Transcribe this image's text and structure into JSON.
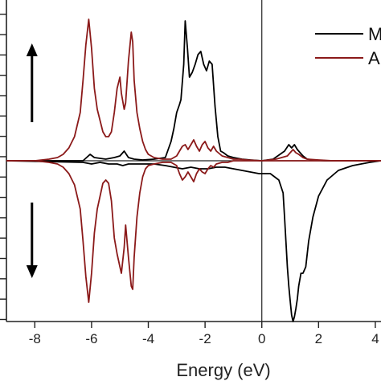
{
  "chart_data": {
    "type": "line",
    "title": "",
    "xlabel": "Energy (eV)",
    "ylabel": "",
    "xlim": [
      -9,
      4.2
    ],
    "ylim": [
      -1.0,
      1.0
    ],
    "x_ticks": [
      -8,
      -6,
      -4,
      -2,
      0,
      2,
      4
    ],
    "x_tick_labels": [
      "-8",
      "-6",
      "-4",
      "-2",
      "0",
      "2",
      "4"
    ],
    "y_tick_count": 16,
    "fermi_line_x": 0,
    "legend": {
      "placement": "top-right",
      "entries": [
        "M",
        "A"
      ]
    },
    "annotations": [
      {
        "type": "arrow",
        "direction": "up",
        "x": -8.1,
        "y_from": 0.24,
        "y_to": 0.73
      },
      {
        "type": "arrow",
        "direction": "down",
        "x": -8.1,
        "y_from": -0.26,
        "y_to": -0.73
      }
    ],
    "series": [
      {
        "name": "M",
        "color": "#000000",
        "spin": "up",
        "x": [
          -9,
          -6.3,
          -6.05,
          -5.9,
          -5.5,
          -5.2,
          -5.0,
          -4.85,
          -4.7,
          -4.5,
          -4.2,
          -3.8,
          -3.4,
          -3.2,
          -3.1,
          -3.0,
          -2.9,
          -2.85,
          -2.75,
          -2.7,
          -2.62,
          -2.55,
          -2.45,
          -2.35,
          -2.25,
          -2.15,
          -2.05,
          -1.95,
          -1.85,
          -1.75,
          -1.65,
          -1.55,
          -1.45,
          -1.35,
          -1.2,
          -1.0,
          -0.7,
          -0.4,
          0,
          0.4,
          0.8,
          0.95,
          1.05,
          1.15,
          1.25,
          1.35,
          1.45,
          1.6,
          1.8,
          2.2,
          3.0,
          4.2
        ],
        "y": [
          0.0,
          0.0,
          0.04,
          0.02,
          0.01,
          0.02,
          0.03,
          0.06,
          0.02,
          0.01,
          0.005,
          0.01,
          0.02,
          0.12,
          0.2,
          0.3,
          0.35,
          0.38,
          0.6,
          0.87,
          0.7,
          0.52,
          0.55,
          0.6,
          0.66,
          0.68,
          0.6,
          0.56,
          0.62,
          0.6,
          0.34,
          0.15,
          0.06,
          0.05,
          0.03,
          0.02,
          0.01,
          0.005,
          0.0,
          0.01,
          0.06,
          0.1,
          0.08,
          0.1,
          0.07,
          0.05,
          0.03,
          0.01,
          0.005,
          0.0,
          0.0,
          0.0
        ]
      },
      {
        "name": "M",
        "color": "#000000",
        "spin": "down",
        "x": [
          -9,
          -6.3,
          -6.0,
          -5.7,
          -5.4,
          -5.1,
          -4.9,
          -4.7,
          -4.5,
          -4.2,
          -3.8,
          -3.4,
          -3.1,
          -2.8,
          -2.5,
          -2.2,
          -1.9,
          -1.6,
          -1.3,
          -1.0,
          -0.7,
          -0.4,
          -0.1,
          0.3,
          0.6,
          0.75,
          0.8,
          0.85,
          0.9,
          0.95,
          1.0,
          1.05,
          1.1,
          1.15,
          1.2,
          1.25,
          1.3,
          1.38,
          1.45,
          1.55,
          1.65,
          1.8,
          2.0,
          2.3,
          2.7,
          3.2,
          3.8,
          4.2
        ],
        "y": [
          0.0,
          -0.01,
          -0.02,
          -0.01,
          -0.02,
          -0.02,
          -0.03,
          -0.02,
          -0.02,
          -0.02,
          -0.02,
          -0.03,
          -0.04,
          -0.05,
          -0.04,
          -0.05,
          -0.05,
          -0.04,
          -0.04,
          -0.05,
          -0.06,
          -0.07,
          -0.08,
          -0.08,
          -0.12,
          -0.2,
          -0.35,
          -0.5,
          -0.66,
          -0.78,
          -0.87,
          -0.96,
          -1.0,
          -0.97,
          -0.92,
          -0.86,
          -0.78,
          -0.7,
          -0.7,
          -0.66,
          -0.5,
          -0.35,
          -0.22,
          -0.12,
          -0.06,
          -0.03,
          -0.01,
          0.0
        ]
      },
      {
        "name": "A",
        "color": "#8b1a1a",
        "spin": "up",
        "x": [
          -9,
          -8.0,
          -7.5,
          -7.2,
          -7.0,
          -6.8,
          -6.6,
          -6.4,
          -6.3,
          -6.2,
          -6.1,
          -6.0,
          -5.9,
          -5.8,
          -5.7,
          -5.6,
          -5.5,
          -5.4,
          -5.3,
          -5.2,
          -5.1,
          -5.0,
          -4.95,
          -4.85,
          -4.8,
          -4.7,
          -4.6,
          -4.55,
          -4.5,
          -4.4,
          -4.3,
          -4.2,
          -4.1,
          -4.0,
          -3.8,
          -3.5,
          -3.2,
          -3.0,
          -2.9,
          -2.8,
          -2.7,
          -2.6,
          -2.5,
          -2.4,
          -2.3,
          -2.2,
          -2.1,
          -2.0,
          -1.9,
          -1.8,
          -1.7,
          -1.6,
          -1.4,
          -1.2,
          -1.0,
          -0.8,
          -0.5,
          0,
          0.5,
          0.9,
          1.0,
          1.1,
          1.2,
          1.3,
          1.45,
          1.6,
          2.0,
          2.5,
          3.0,
          3.5,
          4.2
        ],
        "y": [
          0.0,
          0.0,
          0.01,
          0.02,
          0.04,
          0.08,
          0.15,
          0.3,
          0.5,
          0.72,
          0.88,
          0.7,
          0.45,
          0.32,
          0.25,
          0.18,
          0.15,
          0.15,
          0.18,
          0.3,
          0.45,
          0.52,
          0.42,
          0.32,
          0.36,
          0.62,
          0.8,
          0.74,
          0.5,
          0.3,
          0.2,
          0.12,
          0.07,
          0.04,
          0.02,
          0.01,
          0.01,
          0.03,
          0.06,
          0.09,
          0.1,
          0.07,
          0.1,
          0.13,
          0.09,
          0.06,
          0.1,
          0.12,
          0.08,
          0.06,
          0.09,
          0.06,
          0.03,
          0.02,
          0.01,
          0.01,
          0.005,
          0.0,
          0.01,
          0.03,
          0.05,
          0.07,
          0.05,
          0.04,
          0.02,
          0.01,
          0.005,
          0.0,
          0.0,
          0.0,
          0.0
        ]
      },
      {
        "name": "A",
        "color": "#8b1a1a",
        "spin": "down",
        "x": [
          -9,
          -8.0,
          -7.5,
          -7.2,
          -7.0,
          -6.8,
          -6.6,
          -6.4,
          -6.3,
          -6.2,
          -6.1,
          -6.0,
          -5.9,
          -5.8,
          -5.7,
          -5.6,
          -5.5,
          -5.4,
          -5.3,
          -5.2,
          -5.1,
          -5.0,
          -4.95,
          -4.85,
          -4.8,
          -4.7,
          -4.6,
          -4.55,
          -4.5,
          -4.4,
          -4.3,
          -4.2,
          -4.1,
          -4.0,
          -3.8,
          -3.5,
          -3.2,
          -3.0,
          -2.9,
          -2.8,
          -2.7,
          -2.6,
          -2.5,
          -2.4,
          -2.3,
          -2.2,
          -2.1,
          -2.0,
          -1.9,
          -1.8,
          -1.7,
          -1.6,
          -1.4,
          -1.2,
          -1.0,
          -0.8,
          -0.5,
          0,
          0.5,
          1.0,
          1.5,
          2.0,
          3.0,
          4.2
        ],
        "y": [
          0.0,
          0.0,
          -0.01,
          -0.02,
          -0.04,
          -0.08,
          -0.15,
          -0.3,
          -0.5,
          -0.72,
          -0.88,
          -0.7,
          -0.45,
          -0.3,
          -0.22,
          -0.14,
          -0.12,
          -0.14,
          -0.25,
          -0.48,
          -0.58,
          -0.66,
          -0.7,
          -0.54,
          -0.4,
          -0.6,
          -0.78,
          -0.8,
          -0.6,
          -0.35,
          -0.2,
          -0.1,
          -0.05,
          -0.03,
          -0.02,
          -0.01,
          -0.01,
          -0.03,
          -0.08,
          -0.12,
          -0.1,
          -0.07,
          -0.1,
          -0.13,
          -0.08,
          -0.05,
          -0.07,
          -0.08,
          -0.05,
          -0.03,
          -0.04,
          -0.02,
          -0.01,
          -0.01,
          0.0,
          0.0,
          0.0,
          0.0,
          0.0,
          0.0,
          0.0,
          0.0,
          0.0,
          0.0
        ]
      }
    ]
  }
}
